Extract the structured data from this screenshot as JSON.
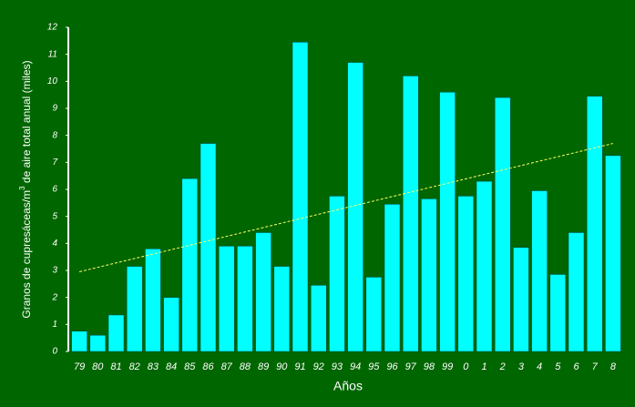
{
  "chart_data": {
    "type": "bar",
    "y_label_parts": [
      "Granos de cupresáceas/m",
      "3",
      " de aire total anual (miles)"
    ],
    "x_label": "Años",
    "categories": [
      "79",
      "80",
      "81",
      "82",
      "83",
      "84",
      "85",
      "86",
      "87",
      "88",
      "89",
      "90",
      "91",
      "92",
      "93",
      "94",
      "95",
      "96",
      "97",
      "98",
      "99",
      "0",
      "1",
      "2",
      "3",
      "4",
      "5",
      "6",
      "7",
      "8"
    ],
    "values": [
      0.75,
      0.6,
      1.35,
      3.15,
      3.8,
      2.0,
      6.4,
      7.7,
      3.9,
      3.9,
      4.4,
      3.15,
      11.45,
      2.45,
      5.75,
      10.7,
      2.75,
      5.45,
      10.2,
      5.65,
      9.6,
      5.75,
      6.3,
      9.4,
      3.85,
      5.95,
      2.85,
      4.4,
      9.45,
      7.25
    ],
    "color": "#00ffff",
    "trend": [
      2.95,
      7.7
    ],
    "trend_color": "#ffff66",
    "ylim": [
      0,
      12
    ],
    "yticks": [
      0,
      1,
      2,
      3,
      4,
      5,
      6,
      7,
      8,
      9,
      10,
      11,
      12
    ]
  }
}
